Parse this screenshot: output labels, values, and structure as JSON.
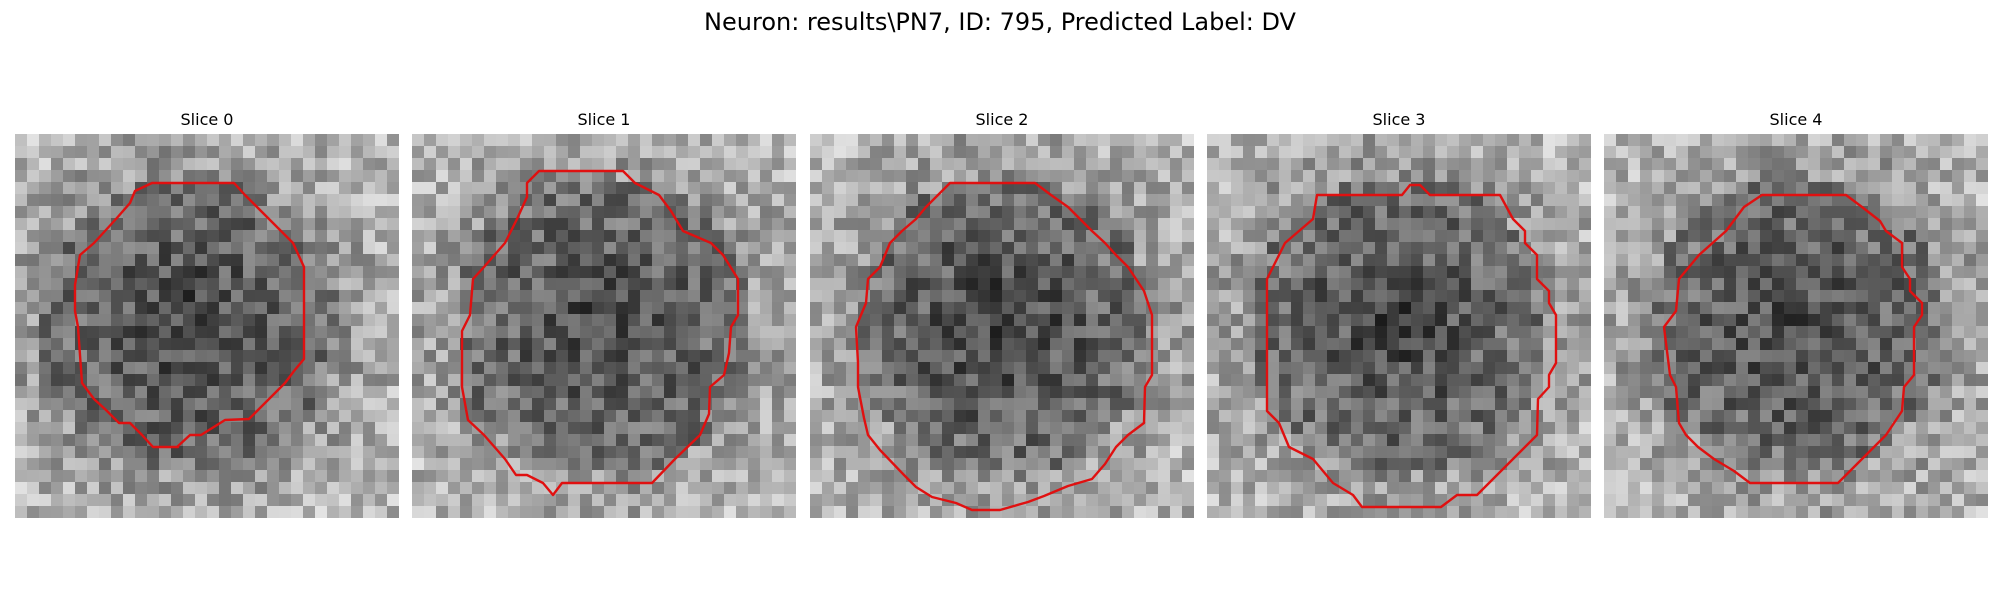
{
  "figure": {
    "title": "Neuron: results\\PN7, ID: 795, Predicted Label: DV"
  },
  "panels": [
    {
      "title": "Slice 0",
      "contour_color": "#e01010",
      "dark_bias": 0.55
    },
    {
      "title": "Slice 1",
      "contour_color": "#e01010",
      "dark_bias": 0.45
    },
    {
      "title": "Slice 2",
      "contour_color": "#e01010",
      "dark_bias": 0.6
    },
    {
      "title": "Slice 3",
      "contour_color": "#e01010",
      "dark_bias": 0.5
    },
    {
      "title": "Slice 4",
      "contour_color": "#e01010",
      "dark_bias": 0.45
    }
  ]
}
